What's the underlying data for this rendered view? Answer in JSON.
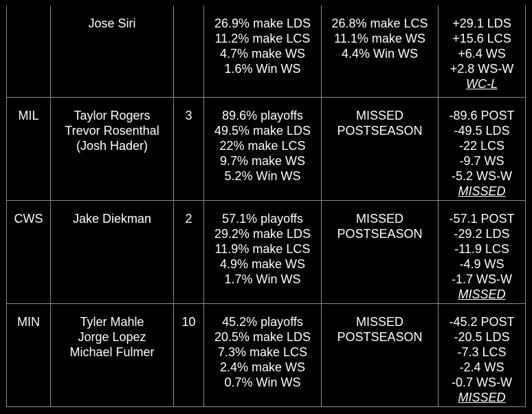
{
  "rows": [
    {
      "team": "",
      "players": [
        "Jose Siri"
      ],
      "count": "",
      "odds": [
        "26.9% make LDS",
        "11.2% make LCS",
        "4.7% make WS",
        "1.6% Win WS"
      ],
      "actual": [
        "26.8% make LCS",
        "11.1% make WS",
        "4.4% Win WS"
      ],
      "delta": [
        "+29.1 LDS",
        "+15.6 LCS",
        "+6.4 WS",
        "+2.8 WS-W"
      ],
      "result": "WC-L"
    },
    {
      "team": "MIL",
      "players": [
        "Taylor Rogers",
        "Trevor Rosenthal",
        "(Josh Hader)"
      ],
      "count": "3",
      "odds": [
        "89.6% playoffs",
        "49.5% make LDS",
        "22% make LCS",
        "9.7% make WS",
        "5.2% Win WS"
      ],
      "actual": [
        "MISSED",
        "POSTSEASON"
      ],
      "delta": [
        "-89.6 POST",
        "-49.5 LDS",
        "-22 LCS",
        "-9.7 WS",
        "-5.2 WS-W"
      ],
      "result": "MISSED"
    },
    {
      "team": "CWS",
      "players": [
        "Jake Diekman"
      ],
      "count": "2",
      "odds": [
        "57.1% playoffs",
        "29.2% make LDS",
        "11.9% make LCS",
        "4.9% make WS",
        "1.7% Win WS"
      ],
      "actual": [
        "MISSED",
        "POSTSEASON"
      ],
      "delta": [
        "-57.1 POST",
        "-29.2 LDS",
        "-11.9 LCS",
        "-4.9 WS",
        "-1.7 WS-W"
      ],
      "result": "MISSED"
    },
    {
      "team": "MIN",
      "players": [
        "Tyler Mahle",
        "Jorge Lopez",
        "Michael Fulmer"
      ],
      "count": "10",
      "odds": [
        "45.2% playoffs",
        "20.5% make LDS",
        "7.3% make LCS",
        "2.4% make WS",
        "0.7% Win WS"
      ],
      "actual": [
        "MISSED",
        "POSTSEASON"
      ],
      "delta": [
        "-45.2 POST",
        "-20.5 LDS",
        "-7.3 LCS",
        "-2.4 WS",
        "-0.7 WS-W"
      ],
      "result": "MISSED"
    }
  ]
}
